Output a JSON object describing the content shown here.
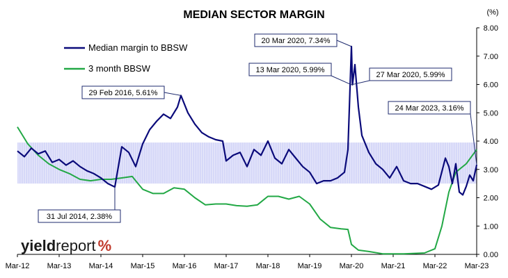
{
  "chart_data": {
    "type": "line",
    "title": "MEDIAN SECTOR MARGIN",
    "yunit": "(%)",
    "ylim": [
      0,
      8
    ],
    "yticks": [
      "0.00",
      "1.00",
      "2.00",
      "3.00",
      "4.00",
      "5.00",
      "6.00",
      "7.00",
      "8.00"
    ],
    "xlim": [
      "2012-03",
      "2023-03"
    ],
    "xticks": [
      "Mar-12",
      "Mar-13",
      "Mar-14",
      "Mar-15",
      "Mar-16",
      "Mar-17",
      "Mar-18",
      "Mar-19",
      "Mar-20",
      "Mar-21",
      "Mar-22",
      "Mar-23"
    ],
    "grid": false,
    "legend_position": "top-left",
    "band": {
      "from": "2012-03",
      "to": "2023-03",
      "low": 2.5,
      "high": 3.95,
      "color": "#c8cbf5"
    },
    "series": [
      {
        "name": "Median margin to BBSW",
        "color": "#0a0a7a",
        "points": [
          [
            "2012-03",
            3.65
          ],
          [
            "2012-05",
            3.45
          ],
          [
            "2012-07",
            3.75
          ],
          [
            "2012-09",
            3.55
          ],
          [
            "2012-11",
            3.65
          ],
          [
            "2013-01",
            3.25
          ],
          [
            "2013-03",
            3.35
          ],
          [
            "2013-05",
            3.15
          ],
          [
            "2013-07",
            3.3
          ],
          [
            "2013-09",
            3.1
          ],
          [
            "2013-11",
            2.95
          ],
          [
            "2014-01",
            2.85
          ],
          [
            "2014-03",
            2.7
          ],
          [
            "2014-05",
            2.5
          ],
          [
            "2014-07",
            2.38
          ],
          [
            "2014-09",
            3.8
          ],
          [
            "2014-11",
            3.6
          ],
          [
            "2015-01",
            3.1
          ],
          [
            "2015-03",
            3.9
          ],
          [
            "2015-05",
            4.4
          ],
          [
            "2015-07",
            4.7
          ],
          [
            "2015-09",
            4.95
          ],
          [
            "2015-11",
            4.8
          ],
          [
            "2016-01",
            5.2
          ],
          [
            "2016-02",
            5.61
          ],
          [
            "2016-04",
            5.0
          ],
          [
            "2016-06",
            4.6
          ],
          [
            "2016-08",
            4.3
          ],
          [
            "2016-10",
            4.15
          ],
          [
            "2016-12",
            4.05
          ],
          [
            "2017-02",
            4.0
          ],
          [
            "2017-03",
            3.3
          ],
          [
            "2017-05",
            3.5
          ],
          [
            "2017-07",
            3.6
          ],
          [
            "2017-09",
            3.1
          ],
          [
            "2017-11",
            3.7
          ],
          [
            "2018-01",
            3.5
          ],
          [
            "2018-03",
            4.0
          ],
          [
            "2018-05",
            3.4
          ],
          [
            "2018-07",
            3.2
          ],
          [
            "2018-09",
            3.7
          ],
          [
            "2018-11",
            3.4
          ],
          [
            "2019-01",
            3.1
          ],
          [
            "2019-03",
            2.9
          ],
          [
            "2019-05",
            2.5
          ],
          [
            "2019-07",
            2.6
          ],
          [
            "2019-09",
            2.6
          ],
          [
            "2019-11",
            2.7
          ],
          [
            "2020-01",
            2.9
          ],
          [
            "2020-02",
            3.7
          ],
          [
            "2020-03",
            7.34
          ],
          [
            "2020-03",
            5.99
          ],
          [
            "2020-04",
            6.7
          ],
          [
            "2020-05",
            5.2
          ],
          [
            "2020-06",
            4.2
          ],
          [
            "2020-08",
            3.6
          ],
          [
            "2020-10",
            3.2
          ],
          [
            "2020-12",
            3.0
          ],
          [
            "2021-02",
            2.7
          ],
          [
            "2021-04",
            3.1
          ],
          [
            "2021-06",
            2.6
          ],
          [
            "2021-08",
            2.5
          ],
          [
            "2021-10",
            2.5
          ],
          [
            "2021-12",
            2.4
          ],
          [
            "2022-02",
            2.3
          ],
          [
            "2022-04",
            2.45
          ],
          [
            "2022-06",
            3.4
          ],
          [
            "2022-07",
            3.1
          ],
          [
            "2022-08",
            2.5
          ],
          [
            "2022-09",
            3.2
          ],
          [
            "2022-10",
            2.2
          ],
          [
            "2022-11",
            2.1
          ],
          [
            "2022-12",
            2.4
          ],
          [
            "2023-01",
            2.8
          ],
          [
            "2023-02",
            2.6
          ],
          [
            "2023-03",
            3.16
          ]
        ]
      },
      {
        "name": "3 month BBSW",
        "color": "#22a845",
        "points": [
          [
            "2012-03",
            4.5
          ],
          [
            "2012-06",
            3.9
          ],
          [
            "2012-09",
            3.5
          ],
          [
            "2012-12",
            3.2
          ],
          [
            "2013-03",
            3.0
          ],
          [
            "2013-06",
            2.85
          ],
          [
            "2013-09",
            2.65
          ],
          [
            "2013-12",
            2.6
          ],
          [
            "2014-03",
            2.65
          ],
          [
            "2014-06",
            2.65
          ],
          [
            "2014-09",
            2.7
          ],
          [
            "2014-12",
            2.75
          ],
          [
            "2015-01",
            2.6
          ],
          [
            "2015-03",
            2.3
          ],
          [
            "2015-06",
            2.15
          ],
          [
            "2015-09",
            2.15
          ],
          [
            "2015-12",
            2.35
          ],
          [
            "2016-03",
            2.3
          ],
          [
            "2016-06",
            2.0
          ],
          [
            "2016-09",
            1.75
          ],
          [
            "2016-12",
            1.78
          ],
          [
            "2017-03",
            1.78
          ],
          [
            "2017-06",
            1.72
          ],
          [
            "2017-09",
            1.7
          ],
          [
            "2017-12",
            1.75
          ],
          [
            "2018-03",
            2.05
          ],
          [
            "2018-06",
            2.05
          ],
          [
            "2018-09",
            1.95
          ],
          [
            "2018-12",
            2.05
          ],
          [
            "2019-03",
            1.78
          ],
          [
            "2019-06",
            1.25
          ],
          [
            "2019-09",
            0.95
          ],
          [
            "2019-12",
            0.9
          ],
          [
            "2020-02",
            0.88
          ],
          [
            "2020-03",
            0.35
          ],
          [
            "2020-05",
            0.15
          ],
          [
            "2020-08",
            0.1
          ],
          [
            "2020-12",
            0.02
          ],
          [
            "2021-06",
            0.02
          ],
          [
            "2021-12",
            0.05
          ],
          [
            "2022-03",
            0.2
          ],
          [
            "2022-05",
            1.0
          ],
          [
            "2022-07",
            2.2
          ],
          [
            "2022-09",
            2.9
          ],
          [
            "2022-12",
            3.2
          ],
          [
            "2023-03",
            3.7
          ]
        ]
      }
    ],
    "annotations": [
      {
        "text": "20 Mar 2020,  7.34%",
        "at": [
          "2020-03",
          7.34
        ]
      },
      {
        "text": "13 Mar 2020,  5.99%",
        "at": [
          "2020-03",
          5.99
        ]
      },
      {
        "text": "27 Mar 2020,  5.99%",
        "at": [
          "2020-03",
          5.99
        ]
      },
      {
        "text": "29 Feb 2016,  5.61%",
        "at": [
          "2016-02",
          5.61
        ]
      },
      {
        "text": "24 Mar 2023,  3.16%",
        "at": [
          "2023-03",
          3.16
        ]
      },
      {
        "text": "31 Jul 2014,  2.38%",
        "at": [
          "2014-07",
          2.38
        ]
      }
    ],
    "logo": {
      "part1": "yield",
      "part2": "report",
      "symbol": "%"
    }
  }
}
